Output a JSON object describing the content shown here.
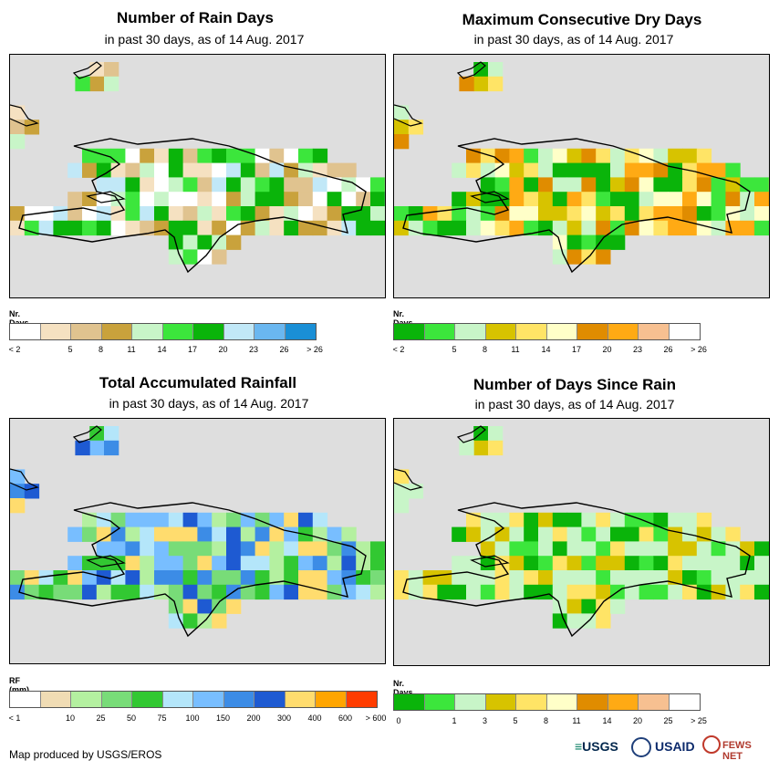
{
  "panels": [
    {
      "title": "Number of Rain Days",
      "subtitle": "in past 30 days, as of 14 Aug. 2017",
      "legend_title": "Nr. Days",
      "legend_colors": [
        "#ffffff",
        "#f5e1c1",
        "#e0c38f",
        "#c9a23c",
        "#c8f5c8",
        "#3ce63c",
        "#0ab40a",
        "#c1e8f7",
        "#6ab7f0",
        "#1a8fd6"
      ],
      "legend_labels": [
        "< 2",
        "5",
        "8",
        "11",
        "14",
        "17",
        "20",
        "23",
        "26",
        "> 26"
      ],
      "cells_palette": [
        "#f5e1c1",
        "#e0c38f",
        "#c9a23c",
        "#c8f5c8",
        "#3ce63c",
        "#0ab40a",
        "#c1e8f7",
        "#ffffff"
      ]
    },
    {
      "title": "Maximum Consecutive Dry Days",
      "subtitle": "in past 30 days, as of 14 Aug. 2017",
      "legend_title": "Nr. Days",
      "legend_colors": [
        "#0ab40a",
        "#3ce63c",
        "#c8f5c8",
        "#d7c300",
        "#ffe466",
        "#ffffc8",
        "#e08c00",
        "#ffaa14",
        "#f7c091",
        "#ffffff"
      ],
      "legend_labels": [
        "< 2",
        "5",
        "8",
        "11",
        "14",
        "17",
        "20",
        "23",
        "26",
        "> 26"
      ],
      "cells_palette": [
        "#3ce63c",
        "#0ab40a",
        "#c8f5c8",
        "#d7c300",
        "#ffe466",
        "#e08c00",
        "#ffaa14",
        "#ffffc8"
      ]
    },
    {
      "title": "Total Accumulated Rainfall",
      "subtitle": "in past 30 days, as of 14 Aug. 2017",
      "legend_title": "RF (mm)",
      "legend_colors": [
        "#ffffff",
        "#f0dcb4",
        "#b4f0a0",
        "#78dc78",
        "#32c832",
        "#b4e6fa",
        "#78beff",
        "#3c8ce6",
        "#1e5ad2",
        "#ffdc6e",
        "#ffa500",
        "#ff3c00"
      ],
      "legend_labels": [
        "< 1",
        "10",
        "25",
        "50",
        "75",
        "100",
        "150",
        "200",
        "300",
        "400",
        "600",
        "> 600"
      ],
      "cells_palette": [
        "#b4f0a0",
        "#78dc78",
        "#32c832",
        "#b4e6fa",
        "#78beff",
        "#3c8ce6",
        "#1e5ad2",
        "#ffdc6e"
      ]
    },
    {
      "title": "Number of Days Since Rain",
      "subtitle": "in past 30 days, as of 14 Aug. 2017",
      "legend_title": "Nr. Days",
      "legend_colors": [
        "#0ab40a",
        "#3ce63c",
        "#c8f5c8",
        "#d7c300",
        "#ffe466",
        "#ffffc8",
        "#e08c00",
        "#ffaa14",
        "#f7c091",
        "#ffffff"
      ],
      "legend_labels": [
        "0",
        "1",
        "3",
        "5",
        "8",
        "11",
        "14",
        "20",
        "25",
        "> 25"
      ],
      "cells_palette": [
        "#c8f5c8",
        "#c8f5c8",
        "#3ce63c",
        "#0ab40a",
        "#c8f5c8",
        "#d7c300",
        "#ffe466",
        "#c8f5c8"
      ]
    }
  ],
  "footer": "Map produced by USGS/EROS",
  "logos": {
    "usgs": "USGS",
    "usaid": "USAID",
    "fewsnet": "FEWS NET"
  }
}
